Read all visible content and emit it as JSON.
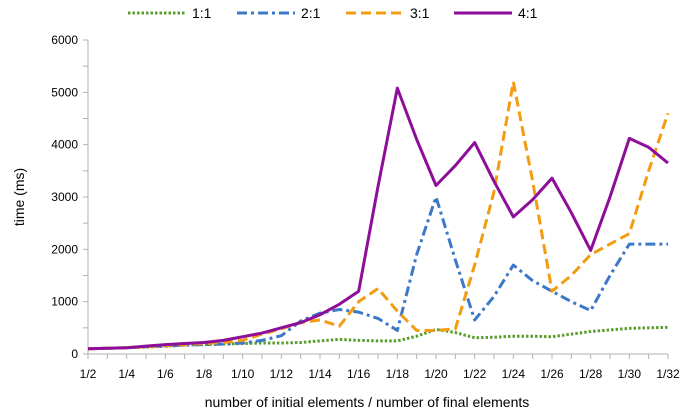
{
  "chart_data": {
    "type": "line",
    "xlabel": "number of initial elements / number of final elements",
    "ylabel": "time (ms)",
    "ylim": [
      0,
      6000
    ],
    "yticks": [
      0,
      1000,
      2000,
      3000,
      4000,
      5000,
      6000
    ],
    "grid": false,
    "legend_position": "top",
    "x": [
      "1/2",
      "1/3",
      "1/4",
      "1/5",
      "1/6",
      "1/7",
      "1/8",
      "1/9",
      "1/10",
      "1/11",
      "1/12",
      "1/13",
      "1/14",
      "1/15",
      "1/16",
      "1/17",
      "1/18",
      "1/19",
      "1/20",
      "1/21",
      "1/22",
      "1/23",
      "1/24",
      "1/25",
      "1/26",
      "1/27",
      "1/28",
      "1/29",
      "1/30",
      "1/31",
      "1/32"
    ],
    "x_tick_labels": [
      "1/2",
      "1/4",
      "1/6",
      "1/8",
      "1/10",
      "1/12",
      "1/14",
      "1/16",
      "1/18",
      "1/20",
      "1/22",
      "1/24",
      "1/26",
      "1/28",
      "1/30",
      "1/32"
    ],
    "series": [
      {
        "name": "1:1",
        "color": "#5a9e2f",
        "dash": "dotted",
        "values": [
          100,
          110,
          120,
          130,
          150,
          170,
          180,
          190,
          200,
          210,
          210,
          220,
          250,
          280,
          260,
          250,
          250,
          340,
          470,
          410,
          310,
          320,
          340,
          340,
          330,
          380,
          430,
          460,
          490,
          500,
          510
        ]
      },
      {
        "name": "2:1",
        "color": "#3c78c8",
        "dash": "dashdot",
        "values": [
          100,
          110,
          120,
          140,
          150,
          170,
          180,
          190,
          210,
          260,
          350,
          630,
          780,
          850,
          800,
          680,
          450,
          1900,
          3000,
          1800,
          650,
          1100,
          1700,
          1400,
          1200,
          1000,
          830,
          1500,
          2100,
          2100,
          2100
        ]
      },
      {
        "name": "3:1",
        "color": "#f39c12",
        "dash": "dashed",
        "values": [
          100,
          110,
          120,
          140,
          160,
          180,
          200,
          220,
          260,
          380,
          480,
          600,
          650,
          530,
          1000,
          1250,
          820,
          450,
          450,
          480,
          1700,
          3100,
          5200,
          3300,
          1200,
          1500,
          1900,
          2100,
          2300,
          3500,
          4600
        ]
      },
      {
        "name": "4:1",
        "color": "#8e0e9a",
        "dash": "solid",
        "values": [
          100,
          110,
          120,
          150,
          180,
          200,
          220,
          260,
          330,
          400,
          500,
          600,
          750,
          950,
          1200,
          3200,
          5080,
          4100,
          3220,
          3600,
          4040,
          3300,
          2620,
          2950,
          3360,
          2700,
          1980,
          3000,
          4120,
          3950,
          3650
        ]
      }
    ]
  }
}
